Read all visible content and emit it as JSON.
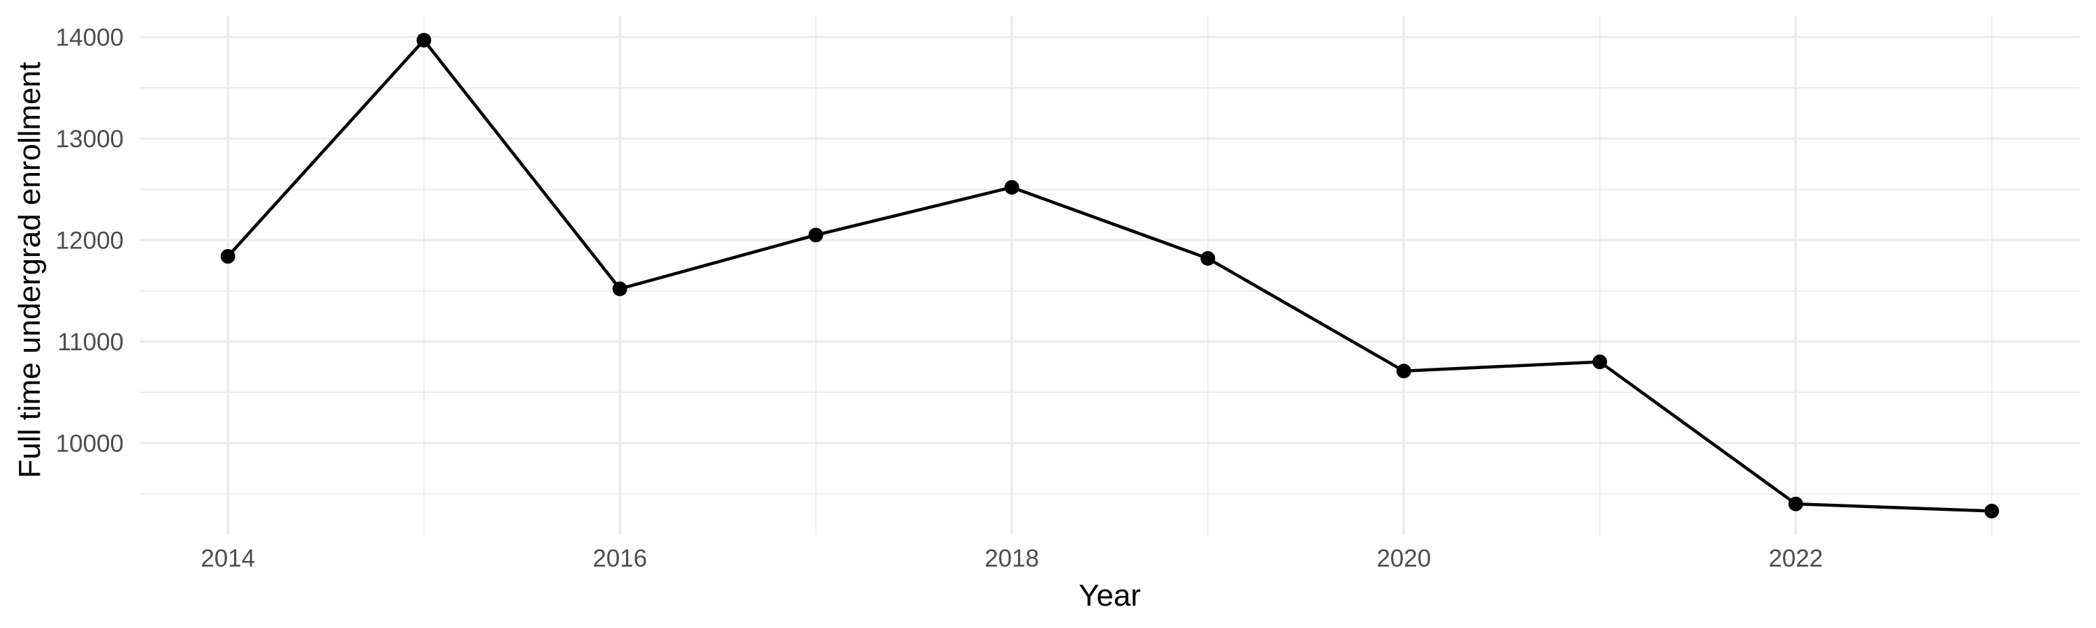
{
  "chart_data": {
    "type": "line",
    "title": "",
    "xlabel": "Year",
    "ylabel": "Full time undergrad enrollment",
    "x": [
      2014,
      2015,
      2016,
      2017,
      2018,
      2019,
      2020,
      2021,
      2022,
      2023
    ],
    "series": [
      {
        "name": "Full time undergrad enrollment",
        "values": [
          11840,
          13970,
          11520,
          12050,
          12520,
          11820,
          10710,
          10800,
          9400,
          9330
        ]
      }
    ],
    "x_ticks": [
      2014,
      2016,
      2018,
      2020,
      2022
    ],
    "x_tick_labels": [
      "2014",
      "2016",
      "2018",
      "2020",
      "2022"
    ],
    "x_minor_ticks": [
      2015,
      2017,
      2019,
      2021,
      2023
    ],
    "y_ticks": [
      10000,
      11000,
      12000,
      13000,
      14000
    ],
    "y_tick_labels": [
      "10000",
      "11000",
      "12000",
      "13000",
      "14000"
    ],
    "y_minor_ticks": [
      9500,
      10500,
      11500,
      12500,
      13500
    ],
    "xlim": [
      2013.55,
      2023.45
    ],
    "ylim": [
      9092,
      14208
    ],
    "grid": "major+minor",
    "legend": "none",
    "marker": "filled-circle",
    "colors": {
      "line": "#000000",
      "point": "#000000",
      "grid": "#EBEBEB",
      "tick_label": "#4D4D4D",
      "axis_title": "#000000",
      "background": "#FFFFFF"
    }
  }
}
